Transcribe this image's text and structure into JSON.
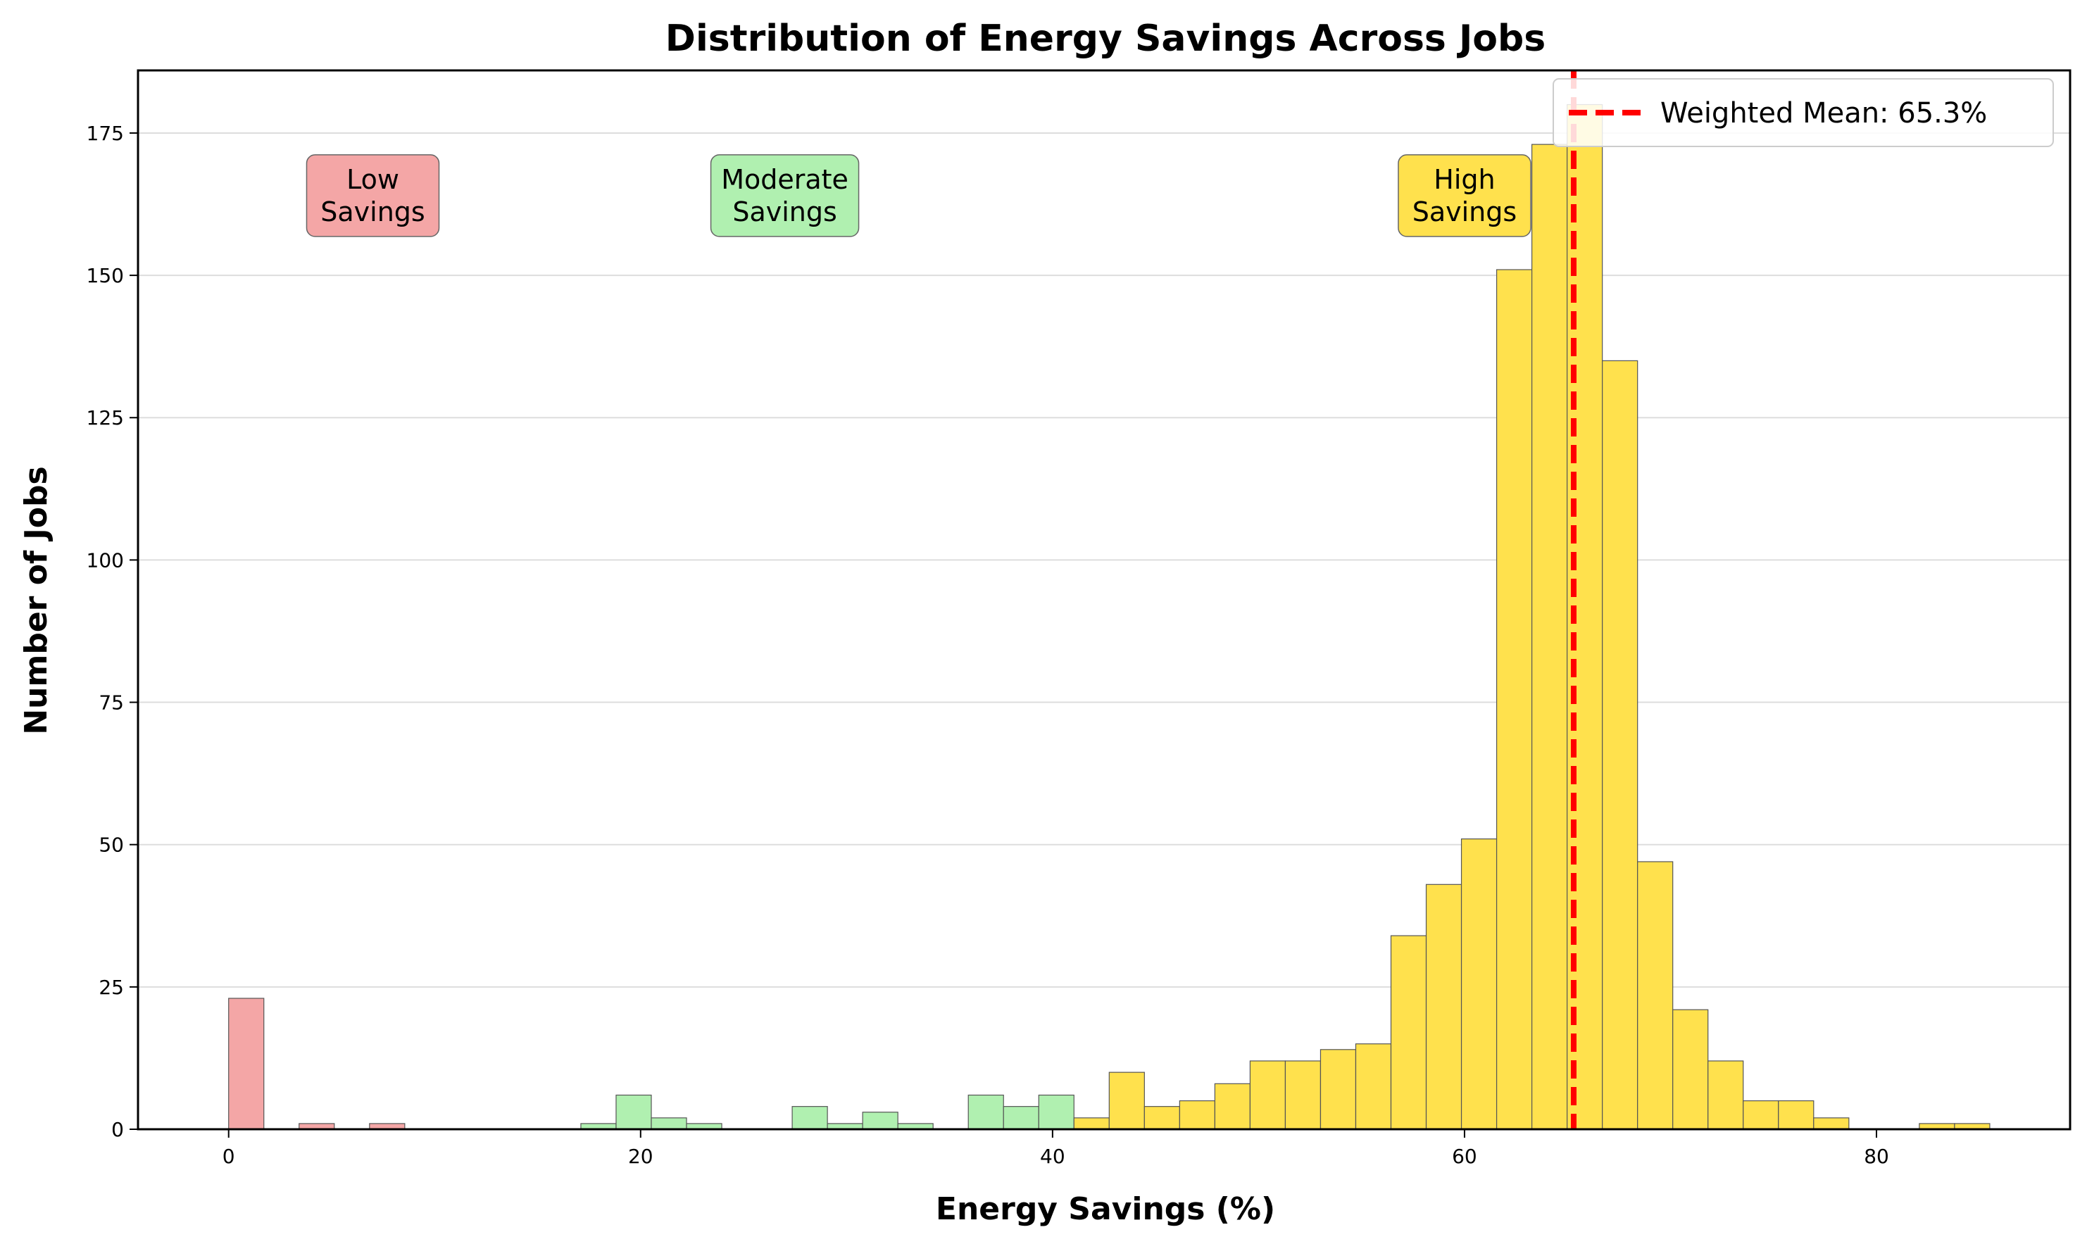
{
  "chart_data": {
    "type": "bar",
    "title": "Distribution of Energy Savings Across Jobs",
    "xlabel": "Energy Savings (%)",
    "ylabel": "Number of Jobs",
    "xlim": [
      -4.4,
      89.4
    ],
    "ylim": [
      0,
      186
    ],
    "xticks": [
      0,
      20,
      40,
      60,
      80
    ],
    "yticks": [
      0,
      25,
      50,
      75,
      100,
      125,
      150,
      175
    ],
    "grid": "horizontal",
    "bin_width": 1.71,
    "bins": [
      {
        "start": 0.0,
        "count": 23,
        "category": "low"
      },
      {
        "start": 3.42,
        "count": 1,
        "category": "low"
      },
      {
        "start": 6.84,
        "count": 1,
        "category": "low"
      },
      {
        "start": 17.1,
        "count": 1,
        "category": "moderate"
      },
      {
        "start": 18.81,
        "count": 6,
        "category": "moderate"
      },
      {
        "start": 20.52,
        "count": 2,
        "category": "moderate"
      },
      {
        "start": 22.23,
        "count": 1,
        "category": "moderate"
      },
      {
        "start": 27.36,
        "count": 4,
        "category": "moderate"
      },
      {
        "start": 29.07,
        "count": 1,
        "category": "moderate"
      },
      {
        "start": 30.78,
        "count": 3,
        "category": "moderate"
      },
      {
        "start": 32.49,
        "count": 1,
        "category": "moderate"
      },
      {
        "start": 35.91,
        "count": 6,
        "category": "moderate"
      },
      {
        "start": 37.62,
        "count": 4,
        "category": "moderate"
      },
      {
        "start": 39.33,
        "count": 6,
        "category": "moderate"
      },
      {
        "start": 41.04,
        "count": 2,
        "category": "high"
      },
      {
        "start": 42.75,
        "count": 10,
        "category": "high"
      },
      {
        "start": 44.46,
        "count": 4,
        "category": "high"
      },
      {
        "start": 46.17,
        "count": 5,
        "category": "high"
      },
      {
        "start": 47.88,
        "count": 8,
        "category": "high"
      },
      {
        "start": 49.59,
        "count": 12,
        "category": "high"
      },
      {
        "start": 51.3,
        "count": 12,
        "category": "high"
      },
      {
        "start": 53.01,
        "count": 14,
        "category": "high"
      },
      {
        "start": 54.72,
        "count": 15,
        "category": "high"
      },
      {
        "start": 56.43,
        "count": 34,
        "category": "high"
      },
      {
        "start": 58.14,
        "count": 43,
        "category": "high"
      },
      {
        "start": 59.85,
        "count": 51,
        "category": "high"
      },
      {
        "start": 61.56,
        "count": 151,
        "category": "high"
      },
      {
        "start": 63.27,
        "count": 173,
        "category": "high"
      },
      {
        "start": 64.98,
        "count": 180,
        "category": "high"
      },
      {
        "start": 66.69,
        "count": 135,
        "category": "high"
      },
      {
        "start": 68.4,
        "count": 47,
        "category": "high"
      },
      {
        "start": 70.11,
        "count": 21,
        "category": "high"
      },
      {
        "start": 71.82,
        "count": 12,
        "category": "high"
      },
      {
        "start": 73.53,
        "count": 5,
        "category": "high"
      },
      {
        "start": 75.24,
        "count": 5,
        "category": "high"
      },
      {
        "start": 76.95,
        "count": 2,
        "category": "high"
      },
      {
        "start": 82.08,
        "count": 1,
        "category": "high"
      },
      {
        "start": 83.79,
        "count": 1,
        "category": "high"
      }
    ],
    "categories": {
      "low": {
        "label_lines": [
          "Low",
          "Savings"
        ],
        "color": "#f4a6a6",
        "label_x": 7.0
      },
      "moderate": {
        "label_lines": [
          "Moderate",
          "Savings"
        ],
        "color": "#b0f0b0",
        "label_x": 27.0
      },
      "high": {
        "label_lines": [
          "High",
          "Savings"
        ],
        "color": "#ffe14d",
        "label_x": 60.0
      }
    },
    "annotation_y": 164,
    "mean_line": {
      "x": 65.3,
      "color": "#ff0000",
      "label": "Weighted Mean: 65.3%"
    },
    "legend_position": "top-right"
  }
}
